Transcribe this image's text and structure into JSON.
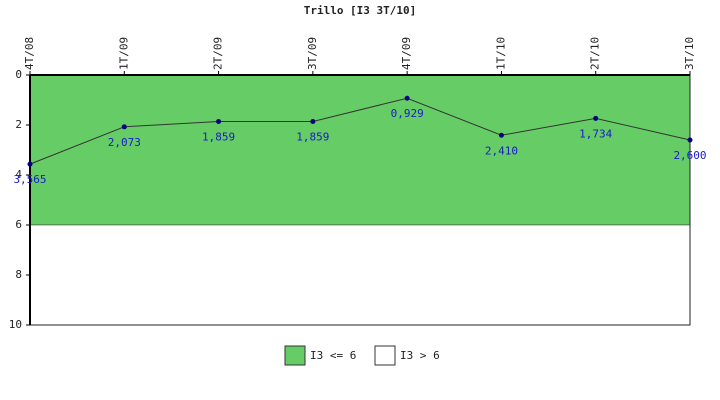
{
  "chart_data": {
    "type": "line",
    "title": "Trillo [I3 3T/10]",
    "categories": [
      "4T/08",
      "1T/09",
      "2T/09",
      "3T/09",
      "4T/09",
      "1T/10",
      "2T/10",
      "3T/10"
    ],
    "series": [
      {
        "color": "#333333",
        "marker_color": "#000080",
        "values": [
          3.565,
          2.073,
          1.859,
          1.859,
          0.929,
          2.41,
          1.734,
          2.6
        ],
        "value_labels": [
          "3,565",
          "2,073",
          "1,859",
          "1,859",
          "0,929",
          "2,410",
          "1,734",
          "2,600"
        ]
      }
    ],
    "bands": [
      {
        "name": "I3 <= 6",
        "from": 0,
        "to": 6,
        "color": "#66cc66"
      },
      {
        "name": "I3 > 6",
        "from": 6,
        "to": 10,
        "color": "#ffffff"
      }
    ],
    "ylim": [
      0,
      10
    ],
    "yticks": [
      0,
      2,
      4,
      6,
      8,
      10
    ],
    "y_reversed": true
  }
}
